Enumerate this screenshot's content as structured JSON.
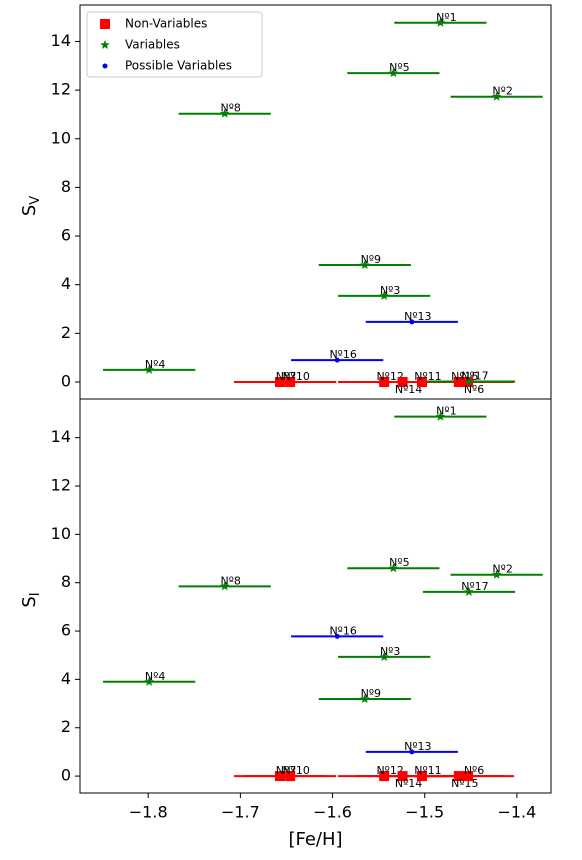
{
  "chart_data": [
    {
      "type": "scatter",
      "ylabel": "S",
      "ylabel_sub": "V",
      "xlim": [
        -1.874,
        -1.363
      ],
      "ylim": [
        -0.7,
        15.5
      ],
      "yticks": [
        0,
        2,
        4,
        6,
        8,
        10,
        12,
        14
      ],
      "legend": "upper left",
      "series": [
        {
          "name": "Non-Variables",
          "color": "#ff0000",
          "marker": "square",
          "labels": [
            "Nº7",
            "Nº10",
            "Nº12",
            "Nº14",
            "Nº11",
            "Nº15",
            "Nº6"
          ],
          "x": [
            -1.657,
            -1.646,
            -1.544,
            -1.524,
            -1.503,
            -1.463,
            -1.453
          ],
          "values": [
            0,
            0,
            0,
            0,
            0,
            0,
            0
          ],
          "xerr": [
            0.05,
            0.05,
            0.05,
            0.05,
            0.05,
            0.05,
            0.05
          ]
        },
        {
          "name": "Variables",
          "color": "#008000",
          "marker": "star",
          "labels": [
            "Nº1",
            "Nº2",
            "Nº5",
            "Nº8",
            "Nº9",
            "Nº3",
            "Nº4",
            "Nº17"
          ],
          "x": [
            -1.483,
            -1.422,
            -1.534,
            -1.717,
            -1.565,
            -1.544,
            -1.799,
            -1.452
          ],
          "values": [
            14.77,
            11.73,
            12.7,
            11.03,
            4.81,
            3.54,
            0.5,
            0.02
          ],
          "xerr": [
            0.05,
            0.05,
            0.05,
            0.05,
            0.05,
            0.05,
            0.05,
            0.05
          ]
        },
        {
          "name": "Possible Variables",
          "color": "#0000ff",
          "marker": "circle",
          "labels": [
            "Nº13",
            "Nº16"
          ],
          "x": [
            -1.514,
            -1.595
          ],
          "values": [
            2.47,
            0.9
          ],
          "xerr": [
            0.05,
            0.05
          ]
        }
      ]
    },
    {
      "type": "scatter",
      "ylabel": "S",
      "ylabel_sub": "I",
      "xlabel": "[Fe/H]",
      "xlim": [
        -1.874,
        -1.363
      ],
      "ylim": [
        -0.7,
        15.6
      ],
      "yticks": [
        0,
        2,
        4,
        6,
        8,
        10,
        12,
        14
      ],
      "xticks": [
        {
          "value": -1.8,
          "label": "−1.8"
        },
        {
          "value": -1.7,
          "label": "−1.7"
        },
        {
          "value": -1.6,
          "label": "−1.6"
        },
        {
          "value": -1.5,
          "label": "−1.5"
        },
        {
          "value": -1.4,
          "label": "−1.4"
        }
      ],
      "series": [
        {
          "name": "Non-Variables",
          "color": "#ff0000",
          "marker": "square",
          "labels": [
            "Nº7",
            "Nº10",
            "Nº12",
            "Nº14",
            "Nº11",
            "Nº15",
            "Nº6"
          ],
          "x": [
            -1.657,
            -1.646,
            -1.544,
            -1.524,
            -1.503,
            -1.463,
            -1.453
          ],
          "values": [
            0,
            0,
            0,
            0,
            0,
            0,
            0
          ],
          "xerr": [
            0.05,
            0.05,
            0.05,
            0.05,
            0.05,
            0.05,
            0.05
          ]
        },
        {
          "name": "Variables",
          "color": "#008000",
          "marker": "star",
          "labels": [
            "Nº1",
            "Nº2",
            "Nº5",
            "Nº8",
            "Nº9",
            "Nº3",
            "Nº4",
            "Nº17"
          ],
          "x": [
            -1.483,
            -1.422,
            -1.534,
            -1.717,
            -1.565,
            -1.544,
            -1.799,
            -1.452
          ],
          "values": [
            14.87,
            8.33,
            8.6,
            7.85,
            3.19,
            4.93,
            3.9,
            7.62
          ],
          "xerr": [
            0.05,
            0.05,
            0.05,
            0.05,
            0.05,
            0.05,
            0.05,
            0.05
          ]
        },
        {
          "name": "Possible Variables",
          "color": "#0000ff",
          "marker": "circle",
          "labels": [
            "Nº13",
            "Nº16"
          ],
          "x": [
            -1.514,
            -1.595
          ],
          "values": [
            1.0,
            5.78
          ],
          "xerr": [
            0.05,
            0.05
          ]
        }
      ]
    }
  ]
}
